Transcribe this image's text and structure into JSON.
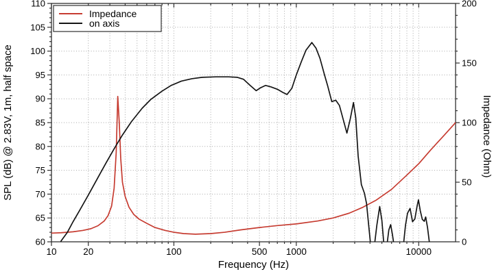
{
  "chart_data": {
    "type": "line",
    "title": "",
    "x_axis": {
      "label": "Frequency (Hz)",
      "scale": "log",
      "min": 10,
      "max": 20000,
      "labeled_ticks": [
        10,
        20,
        100,
        500,
        1000,
        10000
      ],
      "grid_ticks": [
        20,
        30,
        40,
        50,
        60,
        70,
        80,
        90,
        100,
        200,
        300,
        400,
        500,
        600,
        700,
        800,
        900,
        1000,
        2000,
        3000,
        4000,
        5000,
        6000,
        7000,
        8000,
        9000,
        10000
      ]
    },
    "y_left": {
      "label": "SPL (dB) @ 2.83V, 1m, half space",
      "min": 60,
      "max": 110,
      "label_step": 5,
      "minor_step": 1
    },
    "y_right": {
      "label": "Impedance (Ohm)",
      "min": 0,
      "max": 200,
      "label_step": 50,
      "minor_step": 10
    },
    "grid": "dotted",
    "legend": {
      "position": "top-left",
      "entries": [
        {
          "name": "Impedance",
          "color": "#c63b30"
        },
        {
          "name": "on axis",
          "color": "#141414"
        }
      ]
    },
    "series": [
      {
        "name": "Impedance",
        "axis": "right",
        "units": "Ohm",
        "color": "#c63b30",
        "points": [
          [
            10,
            7.3
          ],
          [
            12,
            7.6
          ],
          [
            15,
            8.4
          ],
          [
            18,
            9.5
          ],
          [
            21,
            11
          ],
          [
            24,
            13.5
          ],
          [
            27,
            17.5
          ],
          [
            29,
            22
          ],
          [
            31,
            30
          ],
          [
            32.5,
            45
          ],
          [
            33.8,
            75
          ],
          [
            34.8,
            122
          ],
          [
            35.8,
            100
          ],
          [
            36.8,
            70
          ],
          [
            38,
            50
          ],
          [
            40,
            38
          ],
          [
            43,
            29
          ],
          [
            47,
            23
          ],
          [
            52,
            19
          ],
          [
            60,
            15.5
          ],
          [
            70,
            12
          ],
          [
            85,
            9.5
          ],
          [
            100,
            8
          ],
          [
            120,
            6.9
          ],
          [
            150,
            6.4
          ],
          [
            200,
            6.9
          ],
          [
            260,
            8
          ],
          [
            350,
            10
          ],
          [
            500,
            12
          ],
          [
            700,
            13.6
          ],
          [
            1000,
            15
          ],
          [
            1500,
            17.5
          ],
          [
            2000,
            20
          ],
          [
            2700,
            24
          ],
          [
            3500,
            29
          ],
          [
            4500,
            35
          ],
          [
            6000,
            44
          ],
          [
            8000,
            56
          ],
          [
            10000,
            65.5
          ],
          [
            12500,
            77
          ],
          [
            16000,
            89
          ],
          [
            20000,
            100
          ]
        ]
      },
      {
        "name": "on axis",
        "axis": "left",
        "units": "dB",
        "color": "#141414",
        "points": [
          [
            10,
            55
          ],
          [
            12,
            60.2
          ],
          [
            13.5,
            62
          ],
          [
            15,
            64.2
          ],
          [
            17,
            66.6
          ],
          [
            20,
            69.8
          ],
          [
            24,
            73.5
          ],
          [
            28,
            76.6
          ],
          [
            33,
            79.8
          ],
          [
            38,
            82.4
          ],
          [
            45,
            85.2
          ],
          [
            55,
            88
          ],
          [
            65,
            89.9
          ],
          [
            80,
            91.6
          ],
          [
            95,
            92.8
          ],
          [
            115,
            93.7
          ],
          [
            140,
            94.2
          ],
          [
            170,
            94.5
          ],
          [
            220,
            94.6
          ],
          [
            280,
            94.6
          ],
          [
            330,
            94.5
          ],
          [
            370,
            94.1
          ],
          [
            420,
            92.8
          ],
          [
            470,
            91.7
          ],
          [
            510,
            92.3
          ],
          [
            560,
            92.8
          ],
          [
            620,
            92.5
          ],
          [
            700,
            92
          ],
          [
            780,
            91.3
          ],
          [
            840,
            90.9
          ],
          [
            920,
            92.2
          ],
          [
            1000,
            95
          ],
          [
            1100,
            97.8
          ],
          [
            1200,
            100.2
          ],
          [
            1340,
            101.8
          ],
          [
            1450,
            100.6
          ],
          [
            1560,
            98.5
          ],
          [
            1700,
            95
          ],
          [
            1800,
            92.8
          ],
          [
            1950,
            89.4
          ],
          [
            2100,
            89.7
          ],
          [
            2250,
            88.6
          ],
          [
            2420,
            85.6
          ],
          [
            2590,
            82.8
          ],
          [
            2760,
            85.8
          ],
          [
            2930,
            89.2
          ],
          [
            3060,
            86
          ],
          [
            3200,
            78
          ],
          [
            3400,
            72
          ],
          [
            3600,
            70.2
          ],
          [
            3750,
            68
          ],
          [
            3900,
            63.5
          ],
          [
            4050,
            59.3
          ],
          [
            4350,
            59.3
          ],
          [
            4550,
            63.5
          ],
          [
            4800,
            67.4
          ],
          [
            5000,
            64.5
          ],
          [
            5200,
            59.3
          ],
          [
            5500,
            59.3
          ],
          [
            5700,
            62.5
          ],
          [
            5900,
            63.6
          ],
          [
            6100,
            61.5
          ],
          [
            6280,
            59.3
          ],
          [
            7500,
            59.3
          ],
          [
            7800,
            63.5
          ],
          [
            8100,
            66
          ],
          [
            8500,
            67
          ],
          [
            8900,
            64.2
          ],
          [
            9300,
            64.8
          ],
          [
            9700,
            67.5
          ],
          [
            9950,
            68.8
          ],
          [
            10300,
            66.5
          ],
          [
            10700,
            64.7
          ],
          [
            11100,
            64.3
          ],
          [
            11400,
            65.2
          ],
          [
            11800,
            63
          ],
          [
            12300,
            59.3
          ]
        ]
      }
    ],
    "colors": {
      "grid": "#a6a6a6",
      "frame": "#2e2e2e",
      "background": "#ffffff"
    }
  }
}
